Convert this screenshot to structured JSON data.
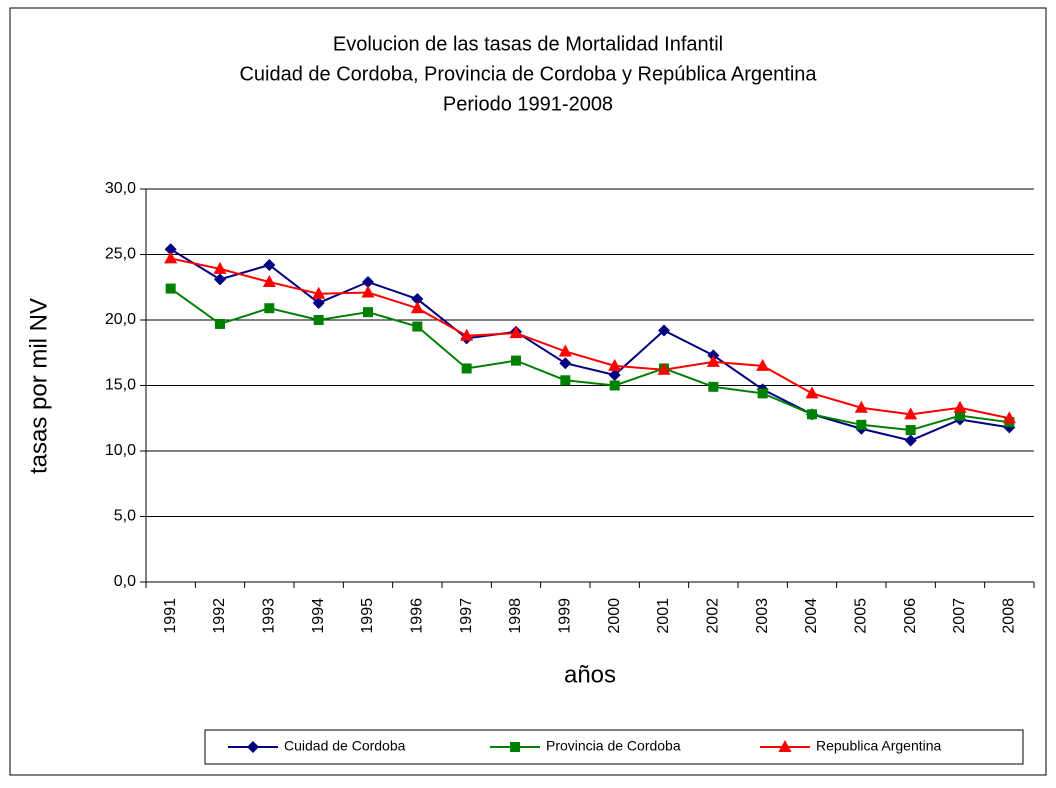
{
  "chart_data": {
    "type": "line",
    "title": [
      "Evolucion de las tasas de Mortalidad Infantil",
      "Cuidad de Cordoba, Provincia de Cordoba y República Argentina",
      "Periodo 1991-2008"
    ],
    "x_label": "años",
    "y_label": "tasas por mil NV",
    "categories": [
      "1991",
      "1992",
      "1993",
      "1994",
      "1995",
      "1996",
      "1997",
      "1998",
      "1999",
      "2000",
      "2001",
      "2002",
      "2003",
      "2004",
      "2005",
      "2006",
      "2007",
      "2008"
    ],
    "series": [
      {
        "name": "Cuidad de Cordoba",
        "color": "#000080",
        "marker": "diamond",
        "values": [
          25.4,
          23.1,
          24.2,
          21.3,
          22.9,
          21.6,
          18.6,
          19.1,
          16.7,
          15.8,
          19.2,
          17.3,
          14.7,
          12.8,
          11.7,
          10.8,
          12.4,
          11.8
        ]
      },
      {
        "name": "Provincia de Cordoba",
        "color": "#008000",
        "marker": "square",
        "values": [
          22.4,
          19.7,
          20.9,
          20.0,
          20.6,
          19.5,
          16.3,
          16.9,
          15.4,
          15.0,
          16.3,
          14.9,
          14.4,
          12.8,
          12.0,
          11.6,
          12.7,
          12.2
        ]
      },
      {
        "name": "Republica Argentina",
        "color": "#ff0000",
        "marker": "triangle",
        "values": [
          24.7,
          23.9,
          22.9,
          22.0,
          22.1,
          20.9,
          18.8,
          19.0,
          17.6,
          16.5,
          16.2,
          16.8,
          16.5,
          14.4,
          13.3,
          12.8,
          13.3,
          12.5
        ]
      }
    ],
    "ylim": [
      0,
      30
    ],
    "yticks": [
      {
        "value": 0,
        "label": "0,0"
      },
      {
        "value": 5,
        "label": "5,0"
      },
      {
        "value": 10,
        "label": "10,0"
      },
      {
        "value": 15,
        "label": "15,0"
      },
      {
        "value": 20,
        "label": "20,0"
      },
      {
        "value": 25,
        "label": "25,0"
      },
      {
        "value": 30,
        "label": "30,0"
      }
    ],
    "grid": true,
    "legend": "bottom"
  }
}
